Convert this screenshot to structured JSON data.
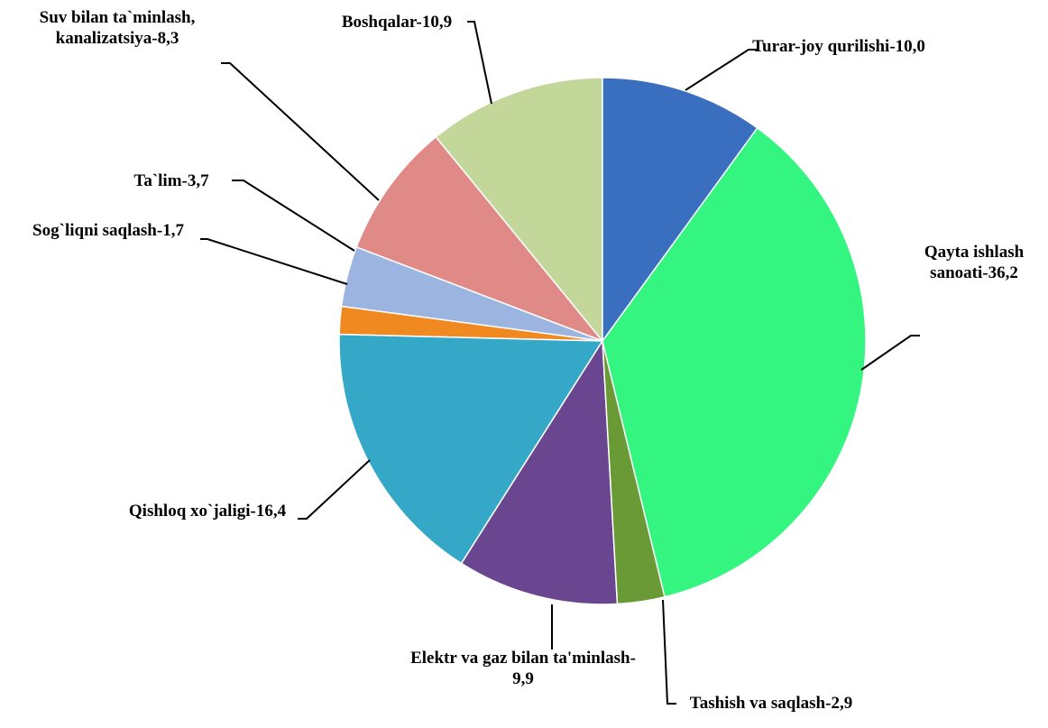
{
  "chart_data": {
    "type": "pie",
    "categories": [
      "Turar-joy qurilishi-",
      "Qayta ishlash sanoati-",
      "Tashish va saqlash-",
      "Elektr va gaz bilan ta'minlash-",
      "Qishloq xo`jaligi-",
      "Sog`liqni saqlash-",
      "Ta`lim-",
      "Suv bilan ta`minlash, kanalizatsiya-",
      "Boshqalar-"
    ],
    "values": [
      10.0,
      36.2,
      2.9,
      9.9,
      16.4,
      1.7,
      3.7,
      8.3,
      10.9
    ],
    "value_labels": [
      "10,0",
      "36,2",
      "2,9",
      "9,9",
      "16,4",
      "1,7",
      "3,7",
      "8,3",
      "10,9"
    ],
    "colors": [
      "#3a6fbf",
      "#33f57f",
      "#6a9a35",
      "#6a4590",
      "#35a8c8",
      "#f08a20",
      "#9bb5e0",
      "#e08a88",
      "#c4d79b"
    ]
  }
}
